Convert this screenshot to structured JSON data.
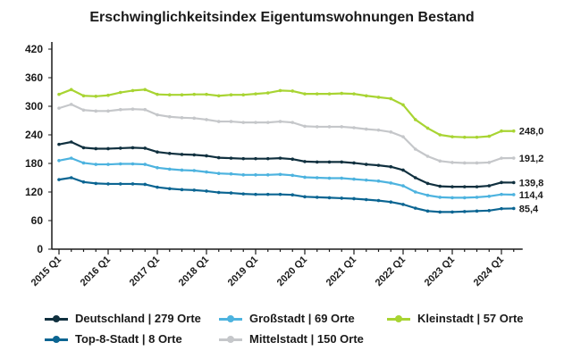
{
  "chart_data": {
    "type": "line",
    "title": "Erschwinglichkeitsindex Eigentumswohnungen Bestand",
    "xlabel": "",
    "ylabel": "",
    "ylim": [
      0,
      420
    ],
    "yticks": [
      0,
      60,
      120,
      180,
      240,
      300,
      360,
      420
    ],
    "xtick_labels": [
      "2015 Q1",
      "2016 Q1",
      "2017 Q1",
      "2018 Q1",
      "2019 Q1",
      "2020 Q1",
      "2021 Q1",
      "2022 Q1",
      "2023 Q1",
      "2024 Q1"
    ],
    "x_start": "2015 Q1",
    "x_end": "2024 Q2",
    "grid": false,
    "legend_position": "bottom",
    "series": [
      {
        "name": "Deutschland | 279 Orte",
        "color": "#10303f",
        "end_label": "139,8",
        "values": [
          220,
          225,
          213,
          211,
          211,
          212,
          213,
          212,
          204,
          201,
          199,
          198,
          196,
          192,
          191,
          190,
          190,
          190,
          191,
          189,
          184,
          183,
          183,
          183,
          181,
          178,
          176,
          173,
          166,
          150,
          138,
          132,
          131,
          131,
          131,
          133,
          140,
          139.8
        ]
      },
      {
        "name": "Großstadt | 69 Orte",
        "color": "#4db3df",
        "end_label": "114,4",
        "values": [
          186,
          191,
          181,
          178,
          178,
          179,
          179,
          178,
          171,
          168,
          166,
          165,
          162,
          159,
          158,
          156,
          156,
          156,
          157,
          155,
          151,
          150,
          149,
          149,
          147,
          145,
          143,
          139,
          133,
          120,
          113,
          109,
          108,
          108,
          109,
          111,
          115,
          114.4
        ]
      },
      {
        "name": "Kleinstadt | 57 Orte",
        "color": "#a8d432",
        "end_label": "248,0",
        "values": [
          325,
          335,
          322,
          321,
          323,
          329,
          333,
          335,
          325,
          324,
          324,
          325,
          325,
          322,
          324,
          324,
          326,
          328,
          333,
          332,
          326,
          326,
          326,
          327,
          326,
          322,
          319,
          316,
          303,
          272,
          254,
          240,
          236,
          235,
          235,
          237,
          248,
          248.0
        ]
      },
      {
        "name": "Top-8-Stadt | 8 Orte",
        "color": "#0b6592",
        "end_label": "85,4",
        "values": [
          146,
          150,
          141,
          138,
          137,
          137,
          137,
          136,
          130,
          127,
          125,
          124,
          122,
          119,
          118,
          116,
          115,
          115,
          115,
          114,
          110,
          109,
          108,
          107,
          106,
          104,
          102,
          99,
          94,
          86,
          80,
          78,
          78,
          79,
          80,
          81,
          85,
          85.4
        ]
      },
      {
        "name": "Mittelstadt | 150 Orte",
        "color": "#c5c7ca",
        "end_label": "191,2",
        "values": [
          296,
          304,
          292,
          290,
          290,
          293,
          294,
          293,
          282,
          278,
          276,
          275,
          272,
          268,
          268,
          266,
          266,
          266,
          268,
          266,
          258,
          257,
          257,
          257,
          255,
          252,
          250,
          246,
          236,
          210,
          195,
          185,
          182,
          181,
          181,
          182,
          191,
          191.2
        ]
      }
    ]
  }
}
